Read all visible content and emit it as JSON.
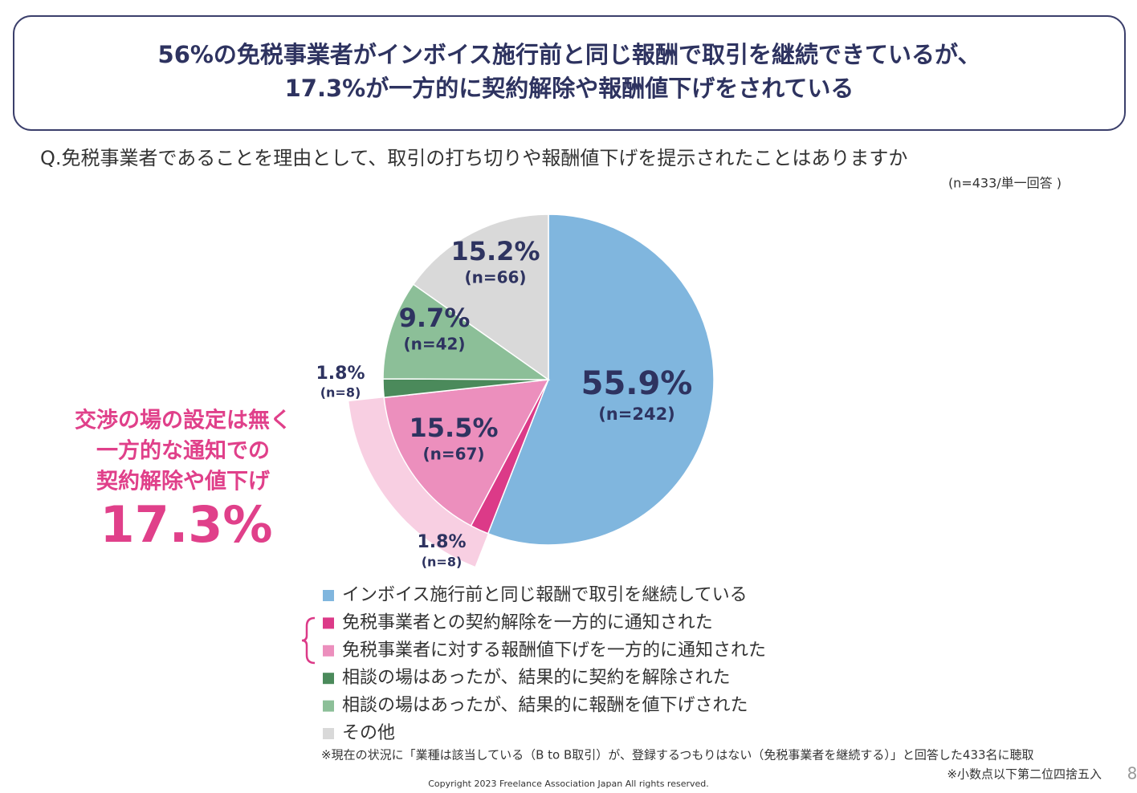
{
  "chart_data": {
    "type": "pie",
    "title": [
      "56%の免税事業者がインボイス施行前と同じ報酬で取引を継続できているが、",
      "17.3%が一方的に契約解除や報酬値下げをされている"
    ],
    "subtitle": "Q.免税事業者であることを理由として、取引の打ち切りや報酬値下げを提示されたことはありますか",
    "sample_note": "(n=433/単一回答 )",
    "categories": [
      "インボイス施行前と同じ報酬で取引を継続している",
      "免税事業者との契約解除を一方的に通知された",
      "免税事業者に対する報酬値下げを一方的に通知された",
      "相談の場はあったが、結果的に契約を解除された",
      "相談の場はあったが、結果的に報酬を値下げされた",
      "その他"
    ],
    "values": [
      55.9,
      1.8,
      15.5,
      1.8,
      9.7,
      15.2
    ],
    "value_labels": [
      "55.9%",
      "1.8%",
      "15.5%",
      "1.8%",
      "9.7%",
      "15.2%"
    ],
    "count_labels": [
      "(n=242)",
      "(n=8)",
      "(n=67)",
      "(n=8)",
      "(n=42)",
      "(n=66)"
    ],
    "colors": [
      "#80b6de",
      "#dc3a88",
      "#ec8fbd",
      "#4b8a5b",
      "#8cbf98",
      "#d9d9d9"
    ],
    "highlight_color": "#f8cfe2",
    "annotation": [
      "交渉の場の設定は無く",
      "一方的な通知での",
      "契約解除や値下げ",
      "17.3%"
    ],
    "footnotes": [
      "※現在の状況に「業種は該当している（B to B取引）が、登録するつもりはない（免税事業者を継続する）」と回答した433名に聴取",
      "※小数点以下第二位四捨五入"
    ],
    "copyright": "Copyright 2023 Freelance Association Japan  All rights reserved.",
    "page_number": "8"
  }
}
